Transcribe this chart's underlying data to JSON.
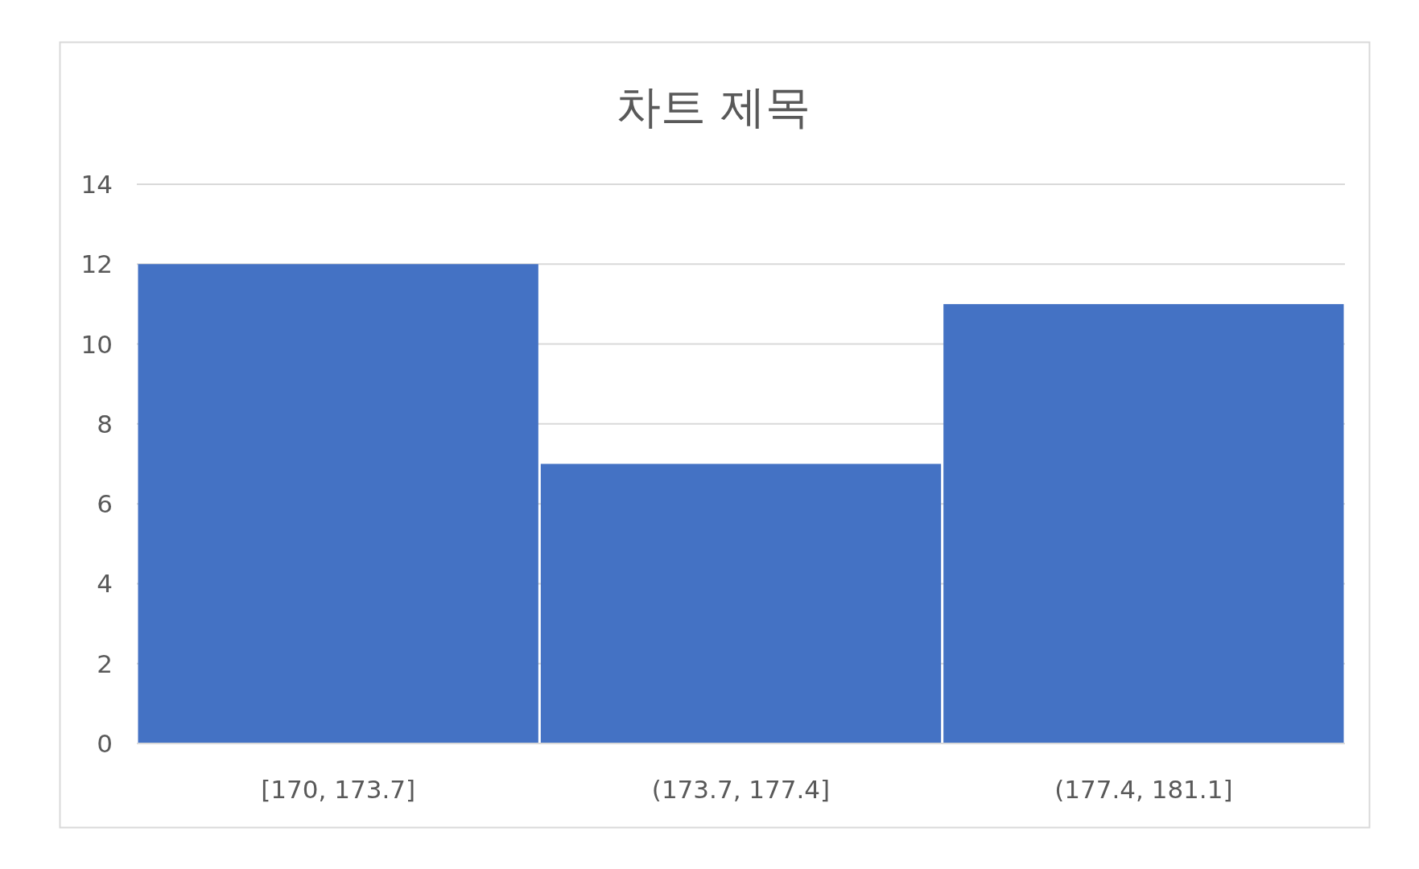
{
  "chart_data": {
    "type": "bar",
    "title": "차트 제목",
    "categories": [
      "[170, 173.7]",
      "(173.7, 177.4]",
      "(177.4, 181.1]"
    ],
    "values": [
      12,
      7,
      11
    ],
    "color": "#4472c4",
    "ylim": [
      0,
      14
    ],
    "yticks": [
      0,
      2,
      4,
      6,
      8,
      10,
      12,
      14
    ],
    "grid": "y"
  }
}
